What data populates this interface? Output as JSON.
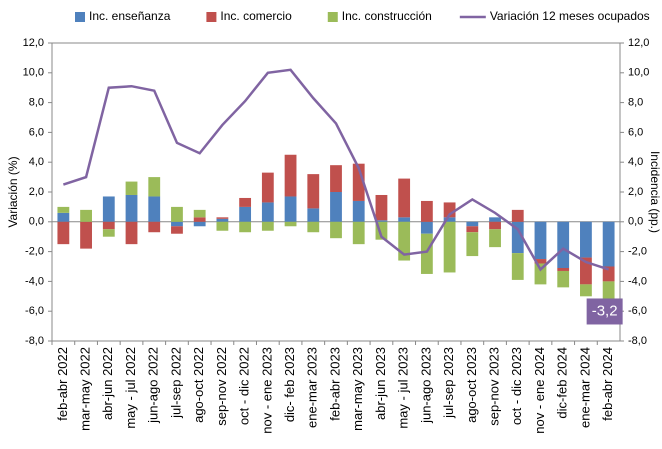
{
  "chart_data": {
    "type": "bar-line",
    "categories": [
      "feb-abr 2022",
      "mar-may 2022",
      "abr-jun 2022",
      "may - jul 2022",
      "jun-ago 2022",
      "jul-sep 2022",
      "ago-oct 2022",
      "sep-nov 2022",
      "oct - dic 2022",
      "nov - ene 2023",
      "dic- feb 2023",
      "ene-mar 2023",
      "feb-abr 2023",
      "mar-may 2023",
      "abr-jun 2023",
      "may - jul 2023",
      "jun-ago 2023",
      "jul-sep 2023",
      "ago-oct 2023",
      "sep-nov 2023",
      "oct - dic 2023",
      "nov - ene 2024",
      "dic-feb 2024",
      "ene-mar 2024",
      "feb-abr 2024"
    ],
    "y_label": "Variación (%)",
    "y2_label": "Incidencia (pp.)",
    "ylim": [
      -8,
      12
    ],
    "y2lim": [
      -8,
      12
    ],
    "yticks": [
      {
        "value": -8,
        "label": "-8,0"
      },
      {
        "value": -6,
        "label": "-6,0"
      },
      {
        "value": -4,
        "label": "-4,0"
      },
      {
        "value": -2,
        "label": "-2,0"
      },
      {
        "value": 0,
        "label": "0,0"
      },
      {
        "value": 2,
        "label": "2,0"
      },
      {
        "value": 4,
        "label": "4,0"
      },
      {
        "value": 6,
        "label": "6,0"
      },
      {
        "value": 8,
        "label": "8,0"
      },
      {
        "value": 10,
        "label": "10,0"
      },
      {
        "value": 12,
        "label": "12,0"
      }
    ],
    "y2ticks": [
      {
        "value": -8,
        "label": "-8,0"
      },
      {
        "value": -6,
        "label": "-6,0"
      },
      {
        "value": -4,
        "label": "-4,0"
      },
      {
        "value": -2,
        "label": "-2,0"
      },
      {
        "value": 0,
        "label": "0,0"
      },
      {
        "value": 2,
        "label": "2,0"
      },
      {
        "value": 4,
        "label": "4,0"
      },
      {
        "value": 6,
        "label": "6,0"
      },
      {
        "value": 8,
        "label": "8,0"
      },
      {
        "value": 10,
        "label": "10,0"
      },
      {
        "value": 12,
        "label": "12,0"
      }
    ],
    "series": [
      {
        "name": "Inc. enseñanza",
        "color": "#4f81bd",
        "kind": "bar",
        "axis": "y2",
        "values": [
          0.6,
          0,
          1.7,
          1.8,
          1.7,
          -0.3,
          -0.3,
          0.2,
          1.0,
          1.3,
          1.7,
          0.9,
          2.0,
          1.4,
          0.1,
          0.3,
          -0.8,
          0.3,
          -0.3,
          0.3,
          -2.1,
          -2.5,
          -3.1,
          -2.4,
          -3.0
        ]
      },
      {
        "name": "Inc. comercio",
        "color": "#c0504d",
        "kind": "bar",
        "axis": "y2",
        "values": [
          -1.5,
          -1.8,
          -0.5,
          -1.5,
          -0.7,
          -0.5,
          0.3,
          0.1,
          0.6,
          2.0,
          2.8,
          2.3,
          1.8,
          2.5,
          1.7,
          2.6,
          1.4,
          1.0,
          -0.4,
          -0.5,
          0.8,
          -0.3,
          -0.2,
          -1.8,
          -1.0
        ]
      },
      {
        "name": "Inc. construcción",
        "color": "#9bbb59",
        "kind": "bar",
        "axis": "y2",
        "values": [
          0.4,
          0.8,
          -0.5,
          0.9,
          1.3,
          1.0,
          0.5,
          -0.6,
          -0.7,
          -0.6,
          -0.3,
          -0.7,
          -1.1,
          -1.5,
          -1.2,
          -2.6,
          -2.7,
          -3.4,
          -1.6,
          -1.2,
          -1.8,
          -1.4,
          -1.1,
          -0.8,
          -1.2
        ]
      },
      {
        "name": "Variación 12 meses ocupados",
        "color": "#8064a2",
        "kind": "line",
        "values": [
          2.5,
          3.0,
          9.0,
          9.1,
          8.8,
          5.3,
          4.6,
          6.5,
          8.1,
          10.0,
          10.2,
          8.3,
          6.6,
          3.6,
          -1.0,
          -2.2,
          -2.0,
          0.5,
          1.5,
          0.6,
          -0.5,
          -3.2,
          -1.8,
          -2.7,
          -3.2
        ],
        "value_labels": [
          null,
          null,
          null,
          null,
          null,
          null,
          null,
          null,
          null,
          null,
          null,
          null,
          null,
          null,
          null,
          null,
          null,
          null,
          null,
          null,
          null,
          null,
          null,
          null,
          "-3,2"
        ]
      }
    ]
  }
}
